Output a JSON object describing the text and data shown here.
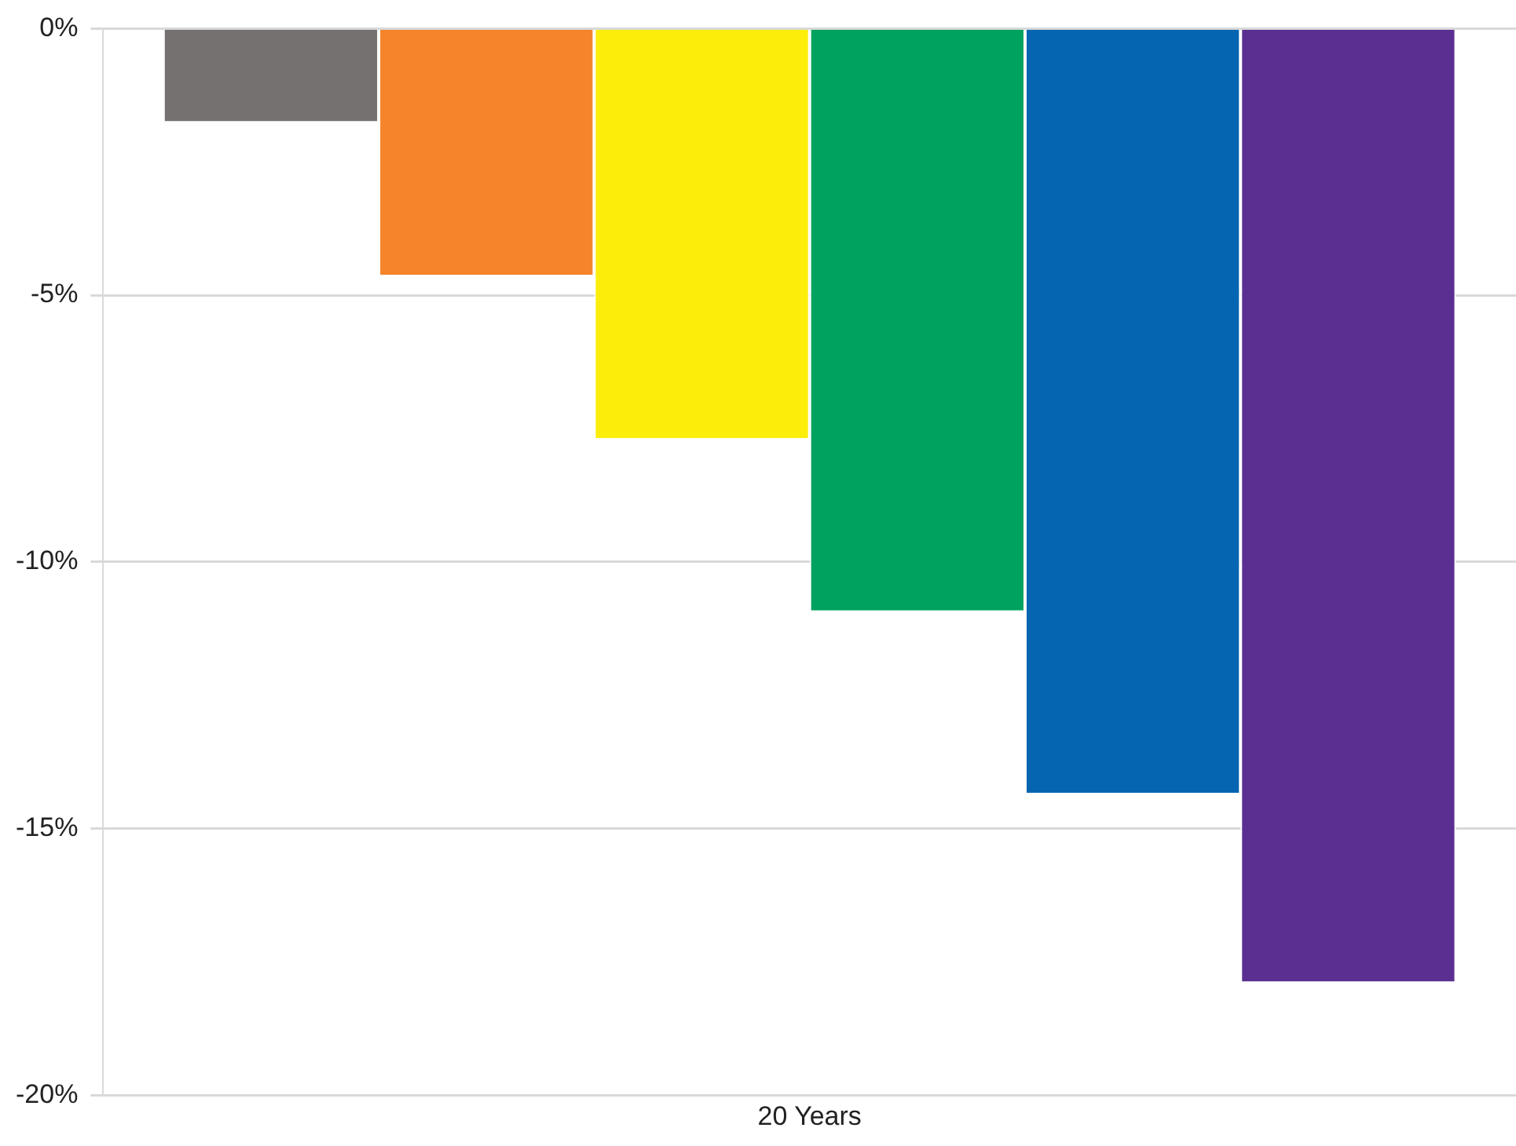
{
  "chart_data": {
    "type": "bar",
    "categories": [
      "20 Years"
    ],
    "series": [
      {
        "color": "#767171",
        "values": [
          -1.74
        ]
      },
      {
        "color": "#f5842a",
        "values": [
          -4.62
        ]
      },
      {
        "color": "#fcee0a",
        "values": [
          -7.68
        ]
      },
      {
        "color": "#00a25f",
        "values": [
          -10.91
        ]
      },
      {
        "color": "#0565b1",
        "values": [
          -14.33
        ]
      },
      {
        "color": "#5b2f91",
        "values": [
          -17.87
        ]
      }
    ],
    "ylim": [
      -20,
      0
    ],
    "yticks": [
      {
        "value": 0,
        "label": "0%"
      },
      {
        "value": -5,
        "label": "-5%"
      },
      {
        "value": -10,
        "label": "-10%"
      },
      {
        "value": -15,
        "label": "-15%"
      },
      {
        "value": -20,
        "label": "-20%"
      }
    ],
    "grid": "y",
    "legend": false
  }
}
